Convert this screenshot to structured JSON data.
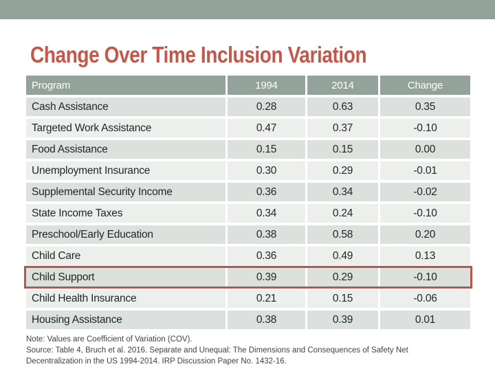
{
  "slide": {
    "title": "Change Over Time Inclusion Variation",
    "colors": {
      "top_bar": "#93a29a",
      "title": "#c5574a",
      "header_bg": "#93a29a",
      "row_odd": "#dce1de",
      "row_even": "#edefed",
      "highlight_border": "#bf5347",
      "note_text": "#3c4447"
    },
    "table": {
      "columns": [
        "Program",
        "1994",
        "2014",
        "Change"
      ],
      "highlighted_row": "Child Support",
      "rows": [
        {
          "program": "Cash Assistance",
          "y1994": "0.28",
          "y2014": "0.63",
          "change": "0.35"
        },
        {
          "program": "Targeted Work Assistance",
          "y1994": "0.47",
          "y2014": "0.37",
          "change": "-0.10"
        },
        {
          "program": "Food Assistance",
          "y1994": "0.15",
          "y2014": "0.15",
          "change": "0.00"
        },
        {
          "program": "Unemployment Insurance",
          "y1994": "0.30",
          "y2014": "0.29",
          "change": "-0.01"
        },
        {
          "program": "Supplemental Security Income",
          "y1994": "0.36",
          "y2014": "0.34",
          "change": "-0.02"
        },
        {
          "program": "State Income Taxes",
          "y1994": "0.34",
          "y2014": "0.24",
          "change": "-0.10"
        },
        {
          "program": "Preschool/Early Education",
          "y1994": "0.38",
          "y2014": "0.58",
          "change": "0.20"
        },
        {
          "program": "Child Care",
          "y1994": "0.36",
          "y2014": "0.49",
          "change": "0.13"
        },
        {
          "program": "Child Support",
          "y1994": "0.39",
          "y2014": "0.29",
          "change": "-0.10"
        },
        {
          "program": "Child Health Insurance",
          "y1994": "0.21",
          "y2014": "0.15",
          "change": "-0.06"
        },
        {
          "program": "Housing Assistance",
          "y1994": "0.38",
          "y2014": "0.39",
          "change": "0.01"
        }
      ]
    },
    "footnote": {
      "lines": [
        "Note: Values are Coefficient of Variation (COV).",
        "Source: Table 4, Bruch et al. 2016. Separate and Unequal: The Dimensions and Consequences of Safety Net",
        "Decentralization in the US 1994-2014. IRP Discussion Paper No. 1432-16."
      ]
    }
  }
}
